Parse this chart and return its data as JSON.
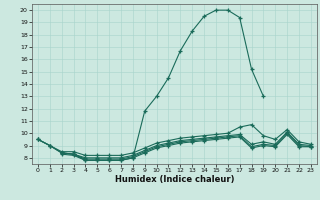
{
  "xlabel": "Humidex (Indice chaleur)",
  "background_color": "#cce8e0",
  "line_color": "#1a6b5a",
  "xlim": [
    -0.5,
    23.5
  ],
  "ylim": [
    7.5,
    20.5
  ],
  "yticks": [
    8,
    9,
    10,
    11,
    12,
    13,
    14,
    15,
    16,
    17,
    18,
    19,
    20
  ],
  "xticks": [
    0,
    1,
    2,
    3,
    4,
    5,
    6,
    7,
    8,
    9,
    10,
    11,
    12,
    13,
    14,
    15,
    16,
    17,
    18,
    19,
    20,
    21,
    22,
    23
  ],
  "main_curve": {
    "x": [
      0,
      1,
      2,
      3,
      4,
      5,
      6,
      7,
      8,
      9,
      10,
      11,
      12,
      13,
      14,
      15,
      16,
      17,
      18,
      19
    ],
    "y": [
      9.5,
      9.0,
      8.4,
      8.3,
      7.8,
      7.8,
      7.8,
      7.8,
      8.0,
      11.8,
      13.0,
      14.5,
      16.7,
      18.3,
      19.5,
      20.0,
      20.0,
      19.4,
      15.2,
      13.0
    ]
  },
  "flat_curves": [
    {
      "x": [
        0,
        1,
        2,
        3,
        4,
        5,
        6,
        7,
        8,
        9,
        10,
        11,
        12,
        13,
        14,
        15,
        16,
        17,
        18,
        19,
        20,
        21,
        22,
        23
      ],
      "y": [
        9.5,
        9.0,
        8.5,
        8.5,
        8.2,
        8.2,
        8.2,
        8.2,
        8.4,
        8.8,
        9.2,
        9.4,
        9.6,
        9.7,
        9.8,
        9.9,
        10.0,
        10.5,
        10.7,
        9.8,
        9.5,
        10.3,
        9.3,
        9.1
      ]
    },
    {
      "x": [
        0,
        1,
        2,
        3,
        4,
        5,
        6,
        7,
        8,
        9,
        10,
        11,
        12,
        13,
        14,
        15,
        16,
        17,
        18,
        19,
        20,
        21,
        22,
        23
      ],
      "y": [
        9.5,
        9.0,
        8.4,
        8.3,
        8.0,
        8.0,
        8.0,
        8.0,
        8.2,
        8.6,
        9.0,
        9.2,
        9.4,
        9.5,
        9.6,
        9.7,
        9.8,
        9.9,
        9.1,
        9.3,
        9.1,
        10.1,
        9.1,
        9.0
      ]
    },
    {
      "x": [
        2,
        3,
        4,
        5,
        6,
        7,
        8,
        9,
        10,
        11,
        12,
        13,
        14,
        15,
        16,
        17,
        18,
        19,
        20,
        21,
        22,
        23
      ],
      "y": [
        8.4,
        8.3,
        7.9,
        7.9,
        7.9,
        7.9,
        8.1,
        8.5,
        8.9,
        9.1,
        9.3,
        9.4,
        9.5,
        9.6,
        9.7,
        9.8,
        8.9,
        9.1,
        9.0,
        10.0,
        9.0,
        8.9
      ]
    },
    {
      "x": [
        2,
        3,
        4,
        5,
        6,
        7,
        8,
        9,
        10,
        11,
        12,
        13,
        14,
        15,
        16,
        17,
        18,
        19,
        20,
        21,
        22,
        23
      ],
      "y": [
        8.3,
        8.2,
        7.8,
        7.8,
        7.8,
        7.8,
        8.0,
        8.4,
        8.8,
        9.0,
        9.2,
        9.3,
        9.4,
        9.5,
        9.6,
        9.7,
        8.8,
        9.0,
        8.9,
        9.9,
        8.9,
        8.9
      ]
    }
  ]
}
